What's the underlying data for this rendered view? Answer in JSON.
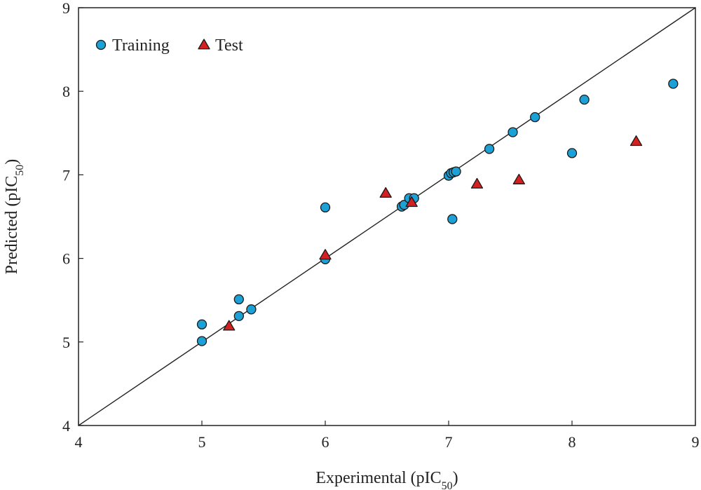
{
  "chart_data": {
    "type": "scatter",
    "xlabel": {
      "main": "Experimental (pIC",
      "sub": "50",
      "close": ")"
    },
    "ylabel": {
      "main": "Predicted (pIC",
      "sub": "50",
      "close": ")"
    },
    "xlim": [
      4,
      9
    ],
    "ylim": [
      4,
      9
    ],
    "xticks": [
      "4",
      "5",
      "6",
      "7",
      "8",
      "9"
    ],
    "yticks": [
      "4",
      "5",
      "6",
      "7",
      "8",
      "9"
    ],
    "grid": false,
    "legend": "top-left",
    "reference_line": {
      "from": [
        4,
        4
      ],
      "to": [
        9,
        9
      ]
    },
    "series": [
      {
        "name": "Training",
        "marker": "circle",
        "color": "#1ba1d6",
        "points": [
          [
            5.0,
            5.21
          ],
          [
            5.0,
            5.01
          ],
          [
            5.3,
            5.51
          ],
          [
            5.3,
            5.31
          ],
          [
            5.4,
            5.39
          ],
          [
            6.0,
            6.61
          ],
          [
            6.0,
            5.99
          ],
          [
            6.62,
            6.62
          ],
          [
            6.64,
            6.64
          ],
          [
            6.68,
            6.72
          ],
          [
            6.72,
            6.72
          ],
          [
            7.0,
            6.99
          ],
          [
            7.02,
            7.02
          ],
          [
            7.04,
            7.03
          ],
          [
            7.06,
            7.04
          ],
          [
            7.03,
            6.47
          ],
          [
            7.33,
            7.31
          ],
          [
            7.52,
            7.51
          ],
          [
            7.7,
            7.69
          ],
          [
            8.0,
            7.26
          ],
          [
            8.1,
            7.9
          ],
          [
            8.82,
            8.09
          ]
        ]
      },
      {
        "name": "Test",
        "marker": "triangle",
        "color": "#d42020",
        "points": [
          [
            5.22,
            5.19
          ],
          [
            6.0,
            6.04
          ],
          [
            6.49,
            6.78
          ],
          [
            6.7,
            6.67
          ],
          [
            7.23,
            6.89
          ],
          [
            7.57,
            6.94
          ],
          [
            8.52,
            7.4
          ]
        ]
      }
    ]
  }
}
